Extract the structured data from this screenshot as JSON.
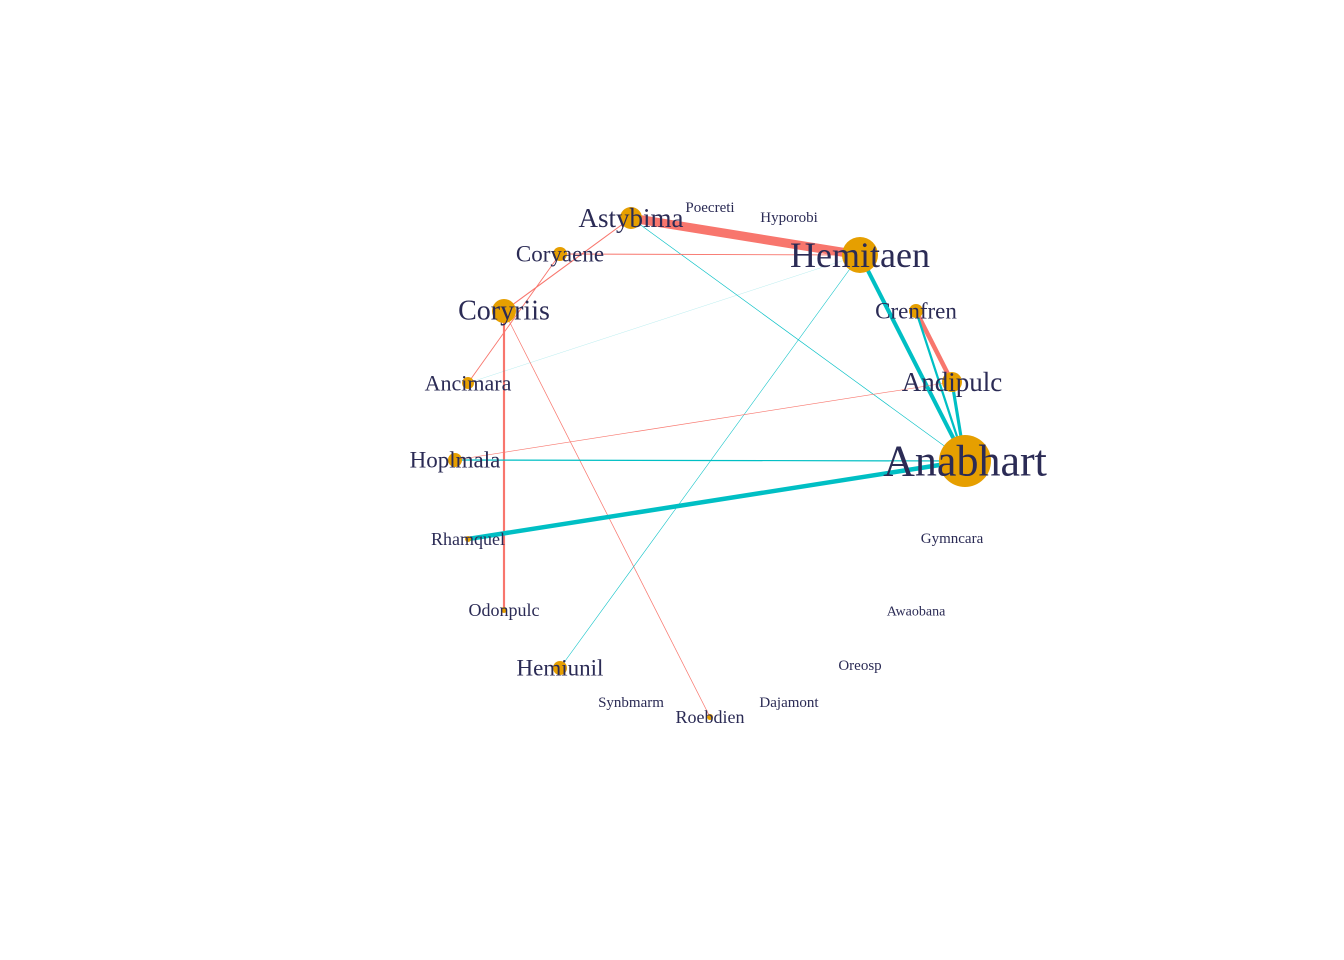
{
  "colors": {
    "positive_edge": "#00BFC4",
    "negative_edge": "#F8766D",
    "node_fill": "#E69F00",
    "label": "#2b2b55"
  },
  "nodes": [
    {
      "id": "astybima",
      "label": "Astybima"
    },
    {
      "id": "poecreti",
      "label": "Poecreti"
    },
    {
      "id": "hyporobi",
      "label": "Hyporobi"
    },
    {
      "id": "hemitaen",
      "label": "Hemitaen"
    },
    {
      "id": "coryaene",
      "label": "Coryaene"
    },
    {
      "id": "coryriis",
      "label": "Coryriis"
    },
    {
      "id": "crenfren",
      "label": "Crenfren"
    },
    {
      "id": "ancimara",
      "label": "Ancimara"
    },
    {
      "id": "andipulc",
      "label": "Andipulc"
    },
    {
      "id": "hoplmala",
      "label": "Hoplmala"
    },
    {
      "id": "anabhart",
      "label": "Anabhart"
    },
    {
      "id": "rhamquel",
      "label": "Rhamquel"
    },
    {
      "id": "gymncara",
      "label": "Gymncara"
    },
    {
      "id": "odonpulc",
      "label": "Odonpulc"
    },
    {
      "id": "awaobana",
      "label": "Awaobana"
    },
    {
      "id": "hemiunil",
      "label": "Hemiunil"
    },
    {
      "id": "oreosp",
      "label": "Oreosp"
    },
    {
      "id": "synbmarm",
      "label": "Synbmarm"
    },
    {
      "id": "roebdien",
      "label": "Roebdien"
    },
    {
      "id": "dajamont",
      "label": "Dajamont"
    }
  ],
  "edges": [
    {
      "source": "astybima",
      "target": "hemitaen",
      "sign": "negative",
      "weight": 10
    },
    {
      "source": "astybima",
      "target": "coryriis",
      "sign": "negative",
      "weight": 1.2
    },
    {
      "source": "astybima",
      "target": "anabhart",
      "sign": "positive",
      "weight": 0.7
    },
    {
      "source": "coryaene",
      "target": "hemitaen",
      "sign": "negative",
      "weight": 1
    },
    {
      "source": "coryaene",
      "target": "ancimara",
      "sign": "negative",
      "weight": 1
    },
    {
      "source": "coryriis",
      "target": "odonpulc",
      "sign": "negative",
      "weight": 2.4
    },
    {
      "source": "coryriis",
      "target": "roebdien",
      "sign": "negative",
      "weight": 0.8
    },
    {
      "source": "ancimara",
      "target": "hemitaen",
      "sign": "positive",
      "weight": 0.3
    },
    {
      "source": "hemitaen",
      "target": "anabhart",
      "sign": "positive",
      "weight": 4.5
    },
    {
      "source": "hemitaen",
      "target": "hemiunil",
      "sign": "positive",
      "weight": 0.6
    },
    {
      "source": "crenfren",
      "target": "andipulc",
      "sign": "negative",
      "weight": 5
    },
    {
      "source": "crenfren",
      "target": "anabhart",
      "sign": "positive",
      "weight": 2.5
    },
    {
      "source": "andipulc",
      "target": "anabhart",
      "sign": "positive",
      "weight": 3.5
    },
    {
      "source": "andipulc",
      "target": "hoplmala",
      "sign": "negative",
      "weight": 0.7
    },
    {
      "source": "hoplmala",
      "target": "anabhart",
      "sign": "positive",
      "weight": 1.3
    },
    {
      "source": "rhamquel",
      "target": "anabhart",
      "sign": "positive",
      "weight": 5
    }
  ]
}
